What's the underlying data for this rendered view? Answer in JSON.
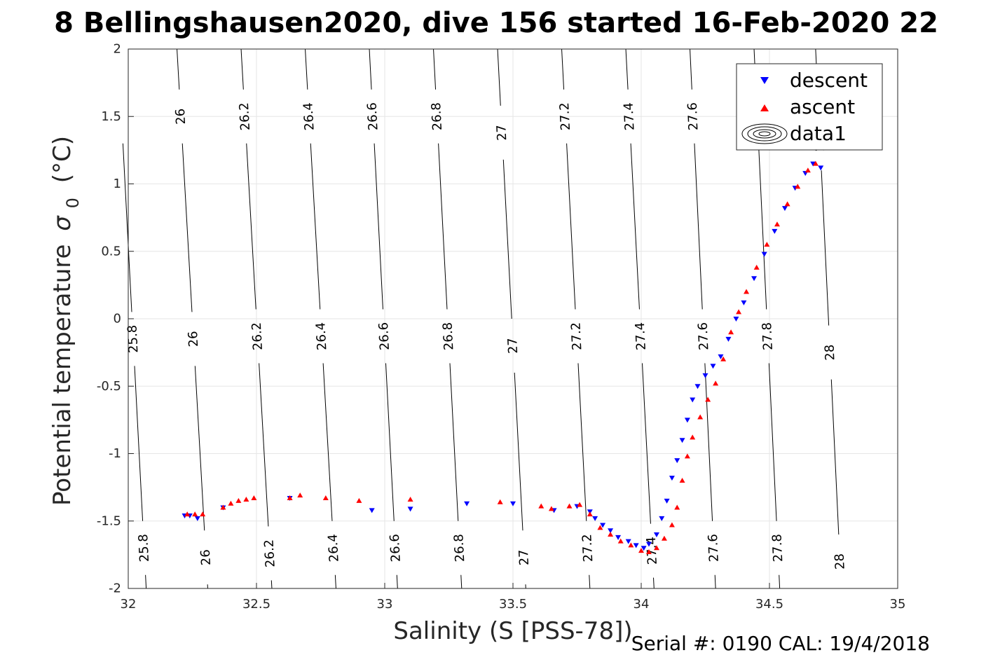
{
  "chart_data": {
    "type": "scatter",
    "title": "8 Bellingshausen2020, dive 156 started 16-Feb-2020 22",
    "xlabel": "Salinity (S [PSS-78])",
    "ylabel": "Potential temperature",
    "ylabel_symbol": "σ",
    "ylabel_subscript": "0",
    "ylabel_unit": "(°C)",
    "xlim": [
      32,
      35
    ],
    "ylim": [
      -2,
      2
    ],
    "xticks": [
      32,
      32.5,
      33,
      33.5,
      34,
      34.5,
      35
    ],
    "xtick_labels": [
      "32",
      "32.5",
      "33",
      "33.5",
      "34",
      "34.5",
      "35"
    ],
    "yticks": [
      -2,
      -1.5,
      -1,
      -0.5,
      0,
      0.5,
      1,
      1.5,
      2
    ],
    "ytick_labels": [
      "-2",
      "-1.5",
      "-1",
      "-0.5",
      "0",
      "0.5",
      "1",
      "1.5",
      "2"
    ],
    "grid": true,
    "legend_position": "top-right",
    "colors": {
      "descent": "#0000ff",
      "ascent": "#ff0000",
      "contour": "#000000",
      "grid": "#e6e6e6"
    },
    "isopycnals": [
      {
        "label": "25.8",
        "s_at_min": 32.07,
        "s_at_max": 31.96,
        "label_temps": [
          1.5,
          -0.15,
          -1.7
        ]
      },
      {
        "label": "26",
        "s_at_min": 32.31,
        "s_at_max": 32.19,
        "label_temps": [
          1.5,
          -0.15,
          -1.77
        ]
      },
      {
        "label": "26.2",
        "s_at_min": 32.56,
        "s_at_max": 32.44,
        "label_temps": [
          1.5,
          -0.13,
          -1.74
        ]
      },
      {
        "label": "26.4",
        "s_at_min": 32.81,
        "s_at_max": 32.69,
        "label_temps": [
          1.5,
          -0.13,
          -1.7
        ]
      },
      {
        "label": "26.6",
        "s_at_min": 33.05,
        "s_at_max": 32.94,
        "label_temps": [
          1.5,
          -0.13,
          -1.7
        ]
      },
      {
        "label": "26.8",
        "s_at_min": 33.3,
        "s_at_max": 33.19,
        "label_temps": [
          1.5,
          -0.13,
          -1.7
        ]
      },
      {
        "label": "27",
        "s_at_min": 33.55,
        "s_at_max": 33.44,
        "label_temps": [
          1.38,
          -0.2,
          -1.77
        ]
      },
      {
        "label": "27.2",
        "s_at_min": 33.8,
        "s_at_max": 33.69,
        "label_temps": [
          1.5,
          -0.13,
          -1.7
        ]
      },
      {
        "label": "27.4",
        "s_at_min": 34.05,
        "s_at_max": 33.94,
        "label_temps": [
          1.5,
          -0.13,
          -1.72
        ]
      },
      {
        "label": "27.6",
        "s_at_min": 34.29,
        "s_at_max": 34.19,
        "label_temps": [
          1.5,
          -0.13,
          -1.7
        ]
      },
      {
        "label": "27.8",
        "s_at_min": 34.54,
        "s_at_max": 34.44,
        "label_temps": [
          1.5,
          -0.13,
          -1.7
        ]
      },
      {
        "label": "28",
        "s_at_min": 34.78,
        "s_at_max": 34.68,
        "label_temps": [
          1.3,
          -0.25,
          -1.8
        ]
      }
    ],
    "series": [
      {
        "name": "descent",
        "marker": "triangle-down",
        "color": "#0000ff",
        "x": [
          32.22,
          32.24,
          32.27,
          32.37,
          32.63,
          32.95,
          33.1,
          33.32,
          33.5,
          33.66,
          33.75,
          33.8,
          33.82,
          33.85,
          33.88,
          33.91,
          33.95,
          33.98,
          34.01,
          34.03,
          34.06,
          34.08,
          34.1,
          34.12,
          34.14,
          34.16,
          34.18,
          34.2,
          34.22,
          34.25,
          34.28,
          34.31,
          34.34,
          34.37,
          34.4,
          34.44,
          34.48,
          34.52,
          34.56,
          34.6,
          34.64,
          34.67,
          34.7
        ],
        "y": [
          -1.46,
          -1.46,
          -1.48,
          -1.4,
          -1.33,
          -1.42,
          -1.41,
          -1.37,
          -1.37,
          -1.42,
          -1.39,
          -1.43,
          -1.48,
          -1.53,
          -1.57,
          -1.62,
          -1.65,
          -1.68,
          -1.7,
          -1.67,
          -1.6,
          -1.48,
          -1.35,
          -1.18,
          -1.05,
          -0.9,
          -0.75,
          -0.6,
          -0.5,
          -0.42,
          -0.35,
          -0.28,
          -0.15,
          0.0,
          0.12,
          0.3,
          0.48,
          0.65,
          0.82,
          0.97,
          1.08,
          1.15,
          1.12
        ]
      },
      {
        "name": "ascent",
        "marker": "triangle-up",
        "color": "#ff0000",
        "x": [
          32.23,
          32.26,
          32.29,
          32.37,
          32.4,
          32.43,
          32.46,
          32.49,
          32.63,
          32.67,
          32.77,
          32.9,
          33.1,
          33.45,
          33.61,
          33.65,
          33.72,
          33.76,
          33.8,
          33.84,
          33.88,
          33.92,
          33.96,
          34.0,
          34.03,
          34.06,
          34.09,
          34.12,
          34.14,
          34.16,
          34.18,
          34.2,
          34.23,
          34.26,
          34.29,
          34.32,
          34.35,
          34.38,
          34.41,
          34.45,
          34.49,
          34.53,
          34.57,
          34.61,
          34.65,
          34.68
        ],
        "y": [
          -1.45,
          -1.45,
          -1.45,
          -1.4,
          -1.37,
          -1.35,
          -1.34,
          -1.33,
          -1.33,
          -1.31,
          -1.33,
          -1.35,
          -1.34,
          -1.36,
          -1.39,
          -1.41,
          -1.39,
          -1.38,
          -1.45,
          -1.55,
          -1.6,
          -1.65,
          -1.68,
          -1.72,
          -1.73,
          -1.7,
          -1.63,
          -1.53,
          -1.4,
          -1.2,
          -1.02,
          -0.88,
          -0.73,
          -0.6,
          -0.48,
          -0.3,
          -0.1,
          0.05,
          0.2,
          0.38,
          0.55,
          0.7,
          0.85,
          0.98,
          1.1,
          1.15
        ]
      }
    ]
  },
  "legend": {
    "items": [
      {
        "label": "descent"
      },
      {
        "label": "ascent"
      },
      {
        "label": "data1"
      }
    ]
  },
  "footer": {
    "serial": "Serial #: 0190  CAL: 19/4/2018"
  }
}
